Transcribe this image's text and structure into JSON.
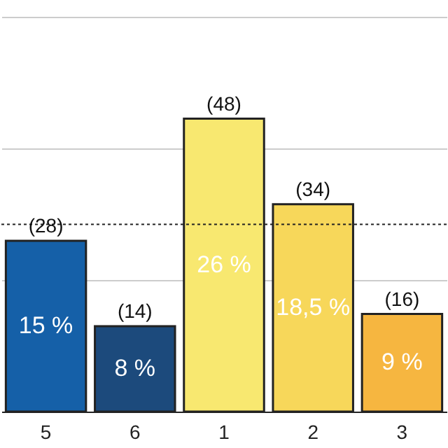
{
  "chart_data": {
    "type": "bar",
    "categories": [
      "5",
      "6",
      "1",
      "2",
      "3"
    ],
    "values": [
      28,
      14,
      48,
      34,
      16
    ],
    "colors": [
      "#1560a8",
      "#1c4a7c",
      "#f8e870",
      "#f7d75a",
      "#f6b640"
    ],
    "value_labels": [
      "(28)",
      "(14)",
      "(48)",
      "(34)",
      "(16)"
    ],
    "annotations": [
      "15 %",
      "8 %",
      "26 %",
      "18,5 %",
      "9 %"
    ],
    "ylim": [
      0,
      67
    ],
    "yticks": [
      {
        "value": 21.6,
        "label": null
      },
      {
        "value": 43.2,
        "label": null
      },
      {
        "value": 64.8,
        "label": null
      }
    ],
    "ref_lines": [
      {
        "axis": "y",
        "value": 30.7,
        "color": "#222222",
        "line_style": "dotted"
      }
    ],
    "grid": "y",
    "tick_labels": "x"
  }
}
